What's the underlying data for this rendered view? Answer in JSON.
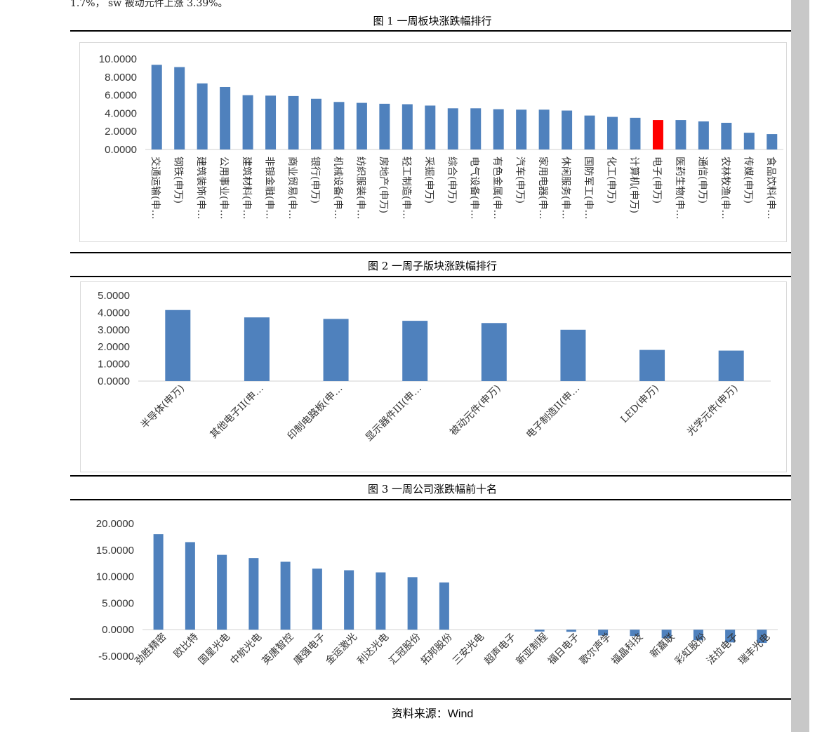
{
  "intro_fragment": "1.7%， sw 被动元件上涨 3.39%。",
  "source_label": "资料来源：",
  "source_value": "Wind",
  "charts": [
    {
      "caption": "图 1 一周板块涨跌幅排行",
      "chart_data": {
        "type": "bar",
        "categories": [
          "交通运输(申…",
          "钢铁(申万)",
          "建筑装饰(申…",
          "公用事业(申…",
          "建筑材料(申…",
          "非银金融(申…",
          "商业贸易(申…",
          "银行(申万)",
          "机械设备(申…",
          "纺织服装(申…",
          "房地产(申万)",
          "轻工制造(申…",
          "采掘(申万)",
          "综合(申万)",
          "电气设备(申…",
          "有色金属(申…",
          "汽车(申万)",
          "家用电器(申…",
          "休闲服务(申…",
          "国防军工(申…",
          "化工(申万)",
          "计算机(申万)",
          "电子(申万)",
          "医药生物(申…",
          "通信(申万)",
          "农林牧渔(申…",
          "传媒(申万)",
          "食品饮料(申…"
        ],
        "values": [
          9.35,
          9.1,
          7.3,
          6.9,
          6.0,
          5.95,
          5.9,
          5.6,
          5.25,
          5.15,
          5.05,
          5.0,
          4.85,
          4.55,
          4.55,
          4.45,
          4.4,
          4.4,
          4.3,
          3.75,
          3.6,
          3.5,
          3.25,
          3.25,
          3.1,
          2.95,
          1.85,
          1.7
        ],
        "highlight_index": 22,
        "ylim": [
          0,
          10
        ],
        "yticks": [
          "0.0000",
          "2.0000",
          "4.0000",
          "6.0000",
          "8.0000",
          "10.0000"
        ],
        "color": "#4f81bd",
        "highlight_color": "#ff0000"
      }
    },
    {
      "caption": "图 2 一周子版块涨跌幅排行",
      "chart_data": {
        "type": "bar",
        "categories": [
          "半导体(申万)",
          "其他电子II(申…",
          "印制电路板(申…",
          "显示器件III(申…",
          "被动元件(申万)",
          "电子制造II(申…",
          "LED(申万)",
          "光学元件(申万)"
        ],
        "values": [
          4.15,
          3.72,
          3.63,
          3.52,
          3.39,
          3.0,
          1.82,
          1.78
        ],
        "ylim": [
          0,
          5
        ],
        "yticks": [
          "0.0000",
          "1.0000",
          "2.0000",
          "3.0000",
          "4.0000",
          "5.0000"
        ],
        "color": "#4f81bd"
      }
    },
    {
      "caption": "图 3 一周公司涨跌幅前十名",
      "chart_data": {
        "type": "bar",
        "categories": [
          "劲胜精密",
          "欧比特",
          "国星光电",
          "中航光电",
          "英唐智控",
          "康强电子",
          "金运激光",
          "利达光电",
          "汇冠股份",
          "拓邦股份",
          "三安光电",
          "超声电子",
          "新亚制程",
          "福日电子",
          "歌尔声学",
          "福晶科技",
          "新嘉联",
          "彩虹股份",
          "法拉电子",
          "瑞丰光电"
        ],
        "values": [
          18.0,
          16.5,
          14.1,
          13.5,
          12.8,
          11.5,
          11.2,
          10.8,
          9.9,
          8.9,
          0,
          0,
          -0.35,
          -0.4,
          -1.1,
          -1.2,
          -1.6,
          -2.0,
          -2.4,
          -2.5
        ],
        "ylim": [
          -5,
          20
        ],
        "yticks": [
          "-5.0000",
          "0.0000",
          "5.0000",
          "10.0000",
          "15.0000",
          "20.0000"
        ],
        "color": "#4f81bd"
      }
    }
  ]
}
